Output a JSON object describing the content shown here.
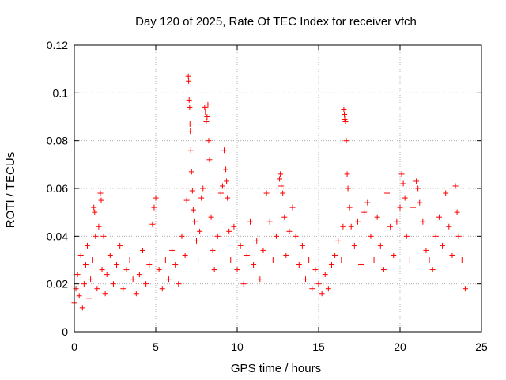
{
  "chart_data": {
    "type": "scatter",
    "title": "Day 120 of 2025, Rate Of TEC Index for receiver vfch",
    "xlabel": "GPS time / hours",
    "ylabel": "ROTI / TECUs",
    "xlim": [
      0,
      25
    ],
    "ylim": [
      0,
      0.12
    ],
    "x_ticks": [
      0,
      5,
      10,
      15,
      20,
      25
    ],
    "x_tick_labels": [
      "0",
      "5",
      "10",
      "15",
      "20",
      "25"
    ],
    "y_ticks": [
      0,
      0.02,
      0.04,
      0.06,
      0.08,
      0.1,
      0.12
    ],
    "y_tick_labels": [
      "0",
      "0.02",
      "0.04",
      "0.06",
      "0.08",
      "0.1",
      "0.12"
    ],
    "grid": true,
    "marker": "+",
    "color": "#ff0000",
    "series": [
      {
        "points": [
          [
            0.0,
            0.012
          ],
          [
            0.1,
            0.018
          ],
          [
            0.2,
            0.024
          ],
          [
            0.3,
            0.015
          ],
          [
            0.4,
            0.032
          ],
          [
            0.5,
            0.01
          ],
          [
            0.6,
            0.02
          ],
          [
            0.7,
            0.028
          ],
          [
            0.8,
            0.036
          ],
          [
            0.9,
            0.014
          ],
          [
            1.0,
            0.022
          ],
          [
            1.1,
            0.03
          ],
          [
            1.2,
            0.052
          ],
          [
            1.25,
            0.05
          ],
          [
            1.3,
            0.04
          ],
          [
            1.4,
            0.018
          ],
          [
            1.5,
            0.044
          ],
          [
            1.6,
            0.058
          ],
          [
            1.65,
            0.055
          ],
          [
            1.7,
            0.026
          ],
          [
            1.8,
            0.04
          ],
          [
            1.9,
            0.016
          ],
          [
            2.0,
            0.024
          ],
          [
            2.2,
            0.032
          ],
          [
            2.4,
            0.02
          ],
          [
            2.6,
            0.028
          ],
          [
            2.8,
            0.036
          ],
          [
            3.0,
            0.018
          ],
          [
            3.2,
            0.026
          ],
          [
            3.4,
            0.03
          ],
          [
            3.6,
            0.022
          ],
          [
            3.8,
            0.016
          ],
          [
            4.0,
            0.024
          ],
          [
            4.2,
            0.034
          ],
          [
            4.4,
            0.02
          ],
          [
            4.6,
            0.028
          ],
          [
            4.8,
            0.045
          ],
          [
            4.9,
            0.052
          ],
          [
            5.0,
            0.056
          ],
          [
            5.2,
            0.026
          ],
          [
            5.4,
            0.018
          ],
          [
            5.6,
            0.03
          ],
          [
            5.8,
            0.022
          ],
          [
            6.0,
            0.034
          ],
          [
            6.2,
            0.028
          ],
          [
            6.4,
            0.02
          ],
          [
            6.6,
            0.04
          ],
          [
            6.8,
            0.032
          ],
          [
            6.9,
            0.055
          ],
          [
            7.0,
            0.107
          ],
          [
            7.02,
            0.105
          ],
          [
            7.05,
            0.097
          ],
          [
            7.08,
            0.094
          ],
          [
            7.1,
            0.087
          ],
          [
            7.12,
            0.084
          ],
          [
            7.15,
            0.076
          ],
          [
            7.2,
            0.067
          ],
          [
            7.25,
            0.059
          ],
          [
            7.3,
            0.051
          ],
          [
            7.4,
            0.046
          ],
          [
            7.5,
            0.038
          ],
          [
            7.6,
            0.03
          ],
          [
            7.7,
            0.042
          ],
          [
            7.8,
            0.056
          ],
          [
            7.9,
            0.06
          ],
          [
            8.0,
            0.094
          ],
          [
            8.05,
            0.092
          ],
          [
            8.1,
            0.088
          ],
          [
            8.15,
            0.09
          ],
          [
            8.2,
            0.095
          ],
          [
            8.25,
            0.08
          ],
          [
            8.3,
            0.072
          ],
          [
            8.4,
            0.048
          ],
          [
            8.5,
            0.034
          ],
          [
            8.6,
            0.026
          ],
          [
            8.8,
            0.04
          ],
          [
            9.0,
            0.058
          ],
          [
            9.1,
            0.061
          ],
          [
            9.2,
            0.076
          ],
          [
            9.3,
            0.068
          ],
          [
            9.35,
            0.063
          ],
          [
            9.4,
            0.056
          ],
          [
            9.5,
            0.042
          ],
          [
            9.6,
            0.03
          ],
          [
            9.8,
            0.044
          ],
          [
            10.0,
            0.026
          ],
          [
            10.2,
            0.036
          ],
          [
            10.4,
            0.02
          ],
          [
            10.6,
            0.032
          ],
          [
            10.8,
            0.046
          ],
          [
            11.0,
            0.028
          ],
          [
            11.2,
            0.038
          ],
          [
            11.4,
            0.022
          ],
          [
            11.6,
            0.034
          ],
          [
            11.8,
            0.058
          ],
          [
            12.0,
            0.046
          ],
          [
            12.2,
            0.03
          ],
          [
            12.4,
            0.04
          ],
          [
            12.6,
            0.064
          ],
          [
            12.65,
            0.066
          ],
          [
            12.7,
            0.061
          ],
          [
            12.8,
            0.058
          ],
          [
            12.9,
            0.048
          ],
          [
            13.0,
            0.032
          ],
          [
            13.2,
            0.042
          ],
          [
            13.4,
            0.052
          ],
          [
            13.6,
            0.04
          ],
          [
            13.8,
            0.028
          ],
          [
            14.0,
            0.036
          ],
          [
            14.2,
            0.022
          ],
          [
            14.4,
            0.03
          ],
          [
            14.6,
            0.018
          ],
          [
            14.8,
            0.026
          ],
          [
            15.0,
            0.02
          ],
          [
            15.2,
            0.016
          ],
          [
            15.4,
            0.024
          ],
          [
            15.6,
            0.018
          ],
          [
            15.8,
            0.028
          ],
          [
            16.0,
            0.032
          ],
          [
            16.2,
            0.038
          ],
          [
            16.4,
            0.03
          ],
          [
            16.5,
            0.044
          ],
          [
            16.55,
            0.093
          ],
          [
            16.58,
            0.091
          ],
          [
            16.6,
            0.089
          ],
          [
            16.65,
            0.088
          ],
          [
            16.7,
            0.08
          ],
          [
            16.75,
            0.066
          ],
          [
            16.8,
            0.06
          ],
          [
            16.9,
            0.052
          ],
          [
            17.0,
            0.044
          ],
          [
            17.2,
            0.036
          ],
          [
            17.4,
            0.046
          ],
          [
            17.6,
            0.028
          ],
          [
            17.8,
            0.05
          ],
          [
            18.0,
            0.054
          ],
          [
            18.2,
            0.04
          ],
          [
            18.4,
            0.03
          ],
          [
            18.6,
            0.048
          ],
          [
            18.8,
            0.036
          ],
          [
            19.0,
            0.026
          ],
          [
            19.2,
            0.058
          ],
          [
            19.4,
            0.044
          ],
          [
            19.6,
            0.032
          ],
          [
            19.8,
            0.046
          ],
          [
            20.0,
            0.052
          ],
          [
            20.1,
            0.066
          ],
          [
            20.2,
            0.062
          ],
          [
            20.3,
            0.056
          ],
          [
            20.4,
            0.04
          ],
          [
            20.6,
            0.03
          ],
          [
            20.8,
            0.052
          ],
          [
            21.0,
            0.063
          ],
          [
            21.1,
            0.06
          ],
          [
            21.2,
            0.054
          ],
          [
            21.4,
            0.046
          ],
          [
            21.6,
            0.034
          ],
          [
            21.8,
            0.03
          ],
          [
            22.0,
            0.026
          ],
          [
            22.2,
            0.04
          ],
          [
            22.4,
            0.048
          ],
          [
            22.6,
            0.036
          ],
          [
            22.8,
            0.058
          ],
          [
            23.0,
            0.044
          ],
          [
            23.2,
            0.032
          ],
          [
            23.4,
            0.061
          ],
          [
            23.5,
            0.05
          ],
          [
            23.6,
            0.04
          ],
          [
            23.8,
            0.03
          ],
          [
            24.0,
            0.018
          ]
        ]
      }
    ]
  }
}
